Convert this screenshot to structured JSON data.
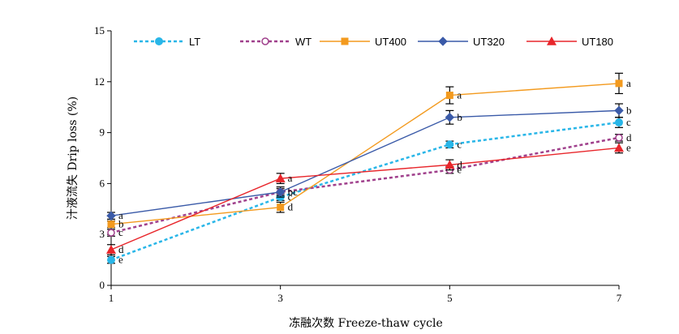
{
  "chart_data": {
    "type": "line",
    "xlabel": "冻融次数 Freeze-thaw cycle",
    "ylabel": "汁液流失 Drip loss (%)",
    "x": [
      1,
      3,
      5,
      7
    ],
    "xticks": [
      "1",
      "3",
      "5",
      "7"
    ],
    "xlim": [
      1,
      7
    ],
    "yticks": [
      "0",
      "3",
      "6",
      "9",
      "12",
      "15"
    ],
    "ylim": [
      0,
      15
    ],
    "grid": false,
    "legend_position": "top",
    "series": [
      {
        "name": "LT",
        "color": "#29b6e8",
        "dash": "dotted",
        "marker": "filled-circle",
        "values": [
          1.5,
          5.2,
          8.3,
          9.6
        ],
        "errors": [
          0.2,
          0.2,
          0.2,
          0.3
        ],
        "letters": [
          "e",
          "c",
          "c",
          "c"
        ]
      },
      {
        "name": "WT",
        "color": "#a0408c",
        "dash": "dotted",
        "marker": "open-circle",
        "values": [
          3.1,
          5.5,
          6.8,
          8.7
        ],
        "errors": [
          0.2,
          0.2,
          0.2,
          0.2
        ],
        "letters": [
          "c",
          "bc",
          "e",
          "d"
        ]
      },
      {
        "name": "UT400",
        "color": "#f39a1e",
        "dash": "solid",
        "marker": "square",
        "values": [
          3.6,
          4.6,
          11.2,
          11.9
        ],
        "errors": [
          0.2,
          0.3,
          0.5,
          0.6
        ],
        "letters": [
          "b",
          "d",
          "a",
          "a"
        ]
      },
      {
        "name": "UT320",
        "color": "#3a5aa8",
        "dash": "solid",
        "marker": "diamond",
        "values": [
          4.1,
          5.5,
          9.9,
          10.3
        ],
        "errors": [
          0.2,
          0.3,
          0.4,
          0.4
        ],
        "letters": [
          "a",
          "b",
          "b",
          "b"
        ]
      },
      {
        "name": "UT180",
        "color": "#e8262b",
        "dash": "solid",
        "marker": "triangle",
        "values": [
          2.1,
          6.3,
          7.1,
          8.1
        ],
        "errors": [
          0.3,
          0.3,
          0.3,
          0.3
        ],
        "letters": [
          "d",
          "a",
          "d",
          "e"
        ]
      }
    ]
  }
}
